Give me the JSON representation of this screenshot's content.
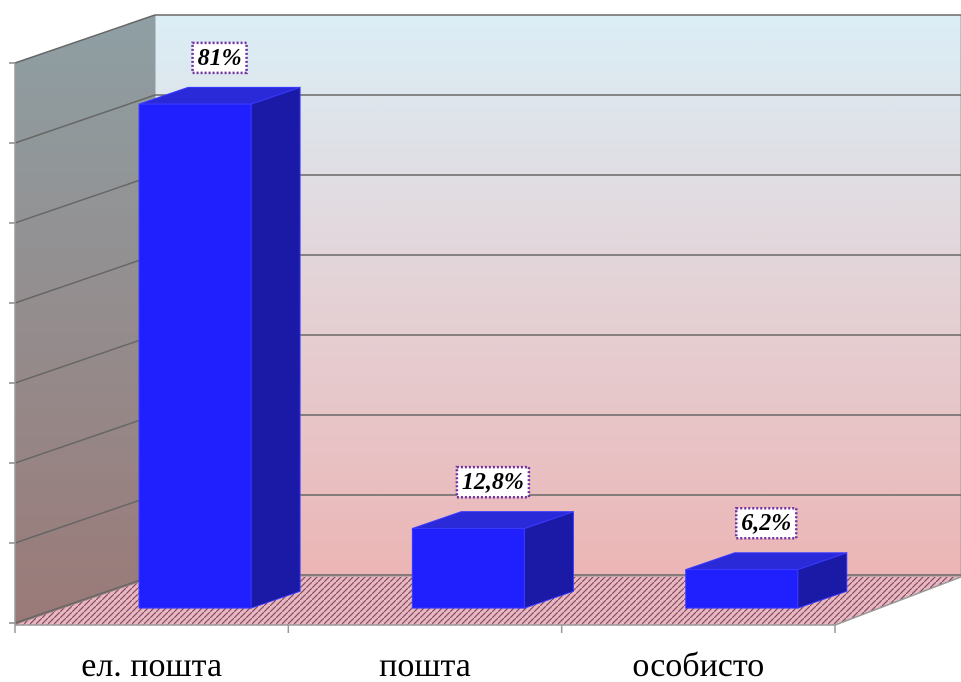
{
  "chart_data": {
    "type": "bar3d",
    "categories": [
      "ел. пошта",
      "пошта",
      "особисто"
    ],
    "values": [
      81,
      12.8,
      6.2
    ],
    "value_labels": [
      "81%",
      "12,8%",
      "6,2%"
    ],
    "color": "#2020ff",
    "ylim": [
      0,
      90
    ],
    "yticks": [
      0,
      12.86,
      25.71,
      38.57,
      51.43,
      64.29,
      77.14,
      90
    ],
    "grid": true
  }
}
